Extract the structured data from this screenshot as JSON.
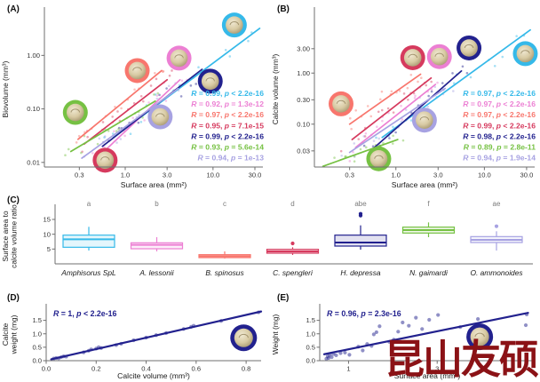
{
  "watermark": {
    "text": "昆山友硕",
    "color": "#8b1216"
  },
  "palette": {
    "cyan": "#35b9e9",
    "pink": "#ec7fd3",
    "salmon": "#f8766d",
    "red": "#d63a5e",
    "navy": "#22218e",
    "green": "#76c143",
    "lavender": "#a7a2e2",
    "letter_gray": "#7b7b7b",
    "axis_gray": "#6f6f6f",
    "tick_text": "#333333"
  },
  "chart_data": [
    {
      "id": "A",
      "type": "scatter",
      "panel_label": "(A)",
      "xlabel": "Surface area (mm²)",
      "ylabel": [
        "Biovolume (mm³)"
      ],
      "xscale": "log",
      "yscale": "log",
      "xlim": [
        0.12,
        37
      ],
      "ylim": [
        0.0082,
        6.6
      ],
      "xticks": {
        "values": [
          0.3,
          1,
          3,
          10,
          30
        ],
        "labels": [
          "0.3",
          "1.0",
          "3.0",
          "10.0",
          "30.0"
        ]
      },
      "yticks": {
        "values": [
          0.01,
          0.1,
          1
        ],
        "labels": [
          "0.01",
          "0.10",
          "1.00"
        ]
      },
      "legend_position": "right-bottom-inside",
      "series": [
        {
          "species": "Amphisorus SpL",
          "color": "cyan",
          "line": [
            0.73,
            0.029,
            34,
            3.2
          ],
          "icon": [
            17.5,
            3.7
          ],
          "r_label": "R = 0.99, p < 2.2e-16"
        },
        {
          "species": "A. lessonii",
          "color": "pink",
          "line": [
            0.5,
            0.013,
            4.2,
            0.35
          ],
          "icon": [
            4.1,
            0.89
          ],
          "r_label": "R = 0.92, p = 1.3e-12"
        },
        {
          "species": "B. spinosus",
          "color": "salmon",
          "line": [
            0.29,
            0.027,
            2.6,
            0.52
          ],
          "icon": [
            1.37,
            0.52
          ],
          "r_label": "R = 0.97, p < 2.2e-16"
        },
        {
          "species": "C. spengleri",
          "color": "red",
          "line": [
            0.34,
            0.022,
            3.0,
            0.35
          ],
          "icon": [
            0.59,
            0.011
          ],
          "r_label": "R = 0.95, p = 7.1e-15"
        },
        {
          "species": "H. depressa",
          "color": "navy",
          "line": [
            0.55,
            0.02,
            7.5,
            0.55
          ],
          "icon": [
            9.3,
            0.33
          ],
          "r_label": "R = 0.99, p < 2.2e-16"
        },
        {
          "species": "N. gaimardi",
          "color": "green",
          "line": [
            0.24,
            0.016,
            2.2,
            0.14
          ],
          "icon": [
            0.27,
            0.086
          ],
          "r_label": "R = 0.93, p = 5.6e-14"
        },
        {
          "species": "O. ammonoides",
          "color": "lavender",
          "line": [
            0.32,
            0.012,
            4.0,
            0.24
          ],
          "icon": [
            2.5,
            0.071
          ],
          "r_label": "R = 0.94, p = 1e-13"
        }
      ]
    },
    {
      "id": "B",
      "type": "scatter",
      "panel_label": "(B)",
      "xlabel": "Surface area (mm²)",
      "ylabel": [
        "Calcite volume (mm³)"
      ],
      "xscale": "log",
      "yscale": "log",
      "xlim": [
        0.12,
        37
      ],
      "ylim": [
        0.0145,
        16
      ],
      "xticks": {
        "values": [
          0.3,
          1,
          3,
          10,
          30
        ],
        "labels": [
          "0.3",
          "1.0",
          "3.0",
          "10.0",
          "30.0"
        ]
      },
      "yticks": {
        "values": [
          0.03,
          0.1,
          0.3,
          1,
          3
        ],
        "labels": [
          "0.03",
          "0.10",
          "0.30",
          "1.00",
          "3.00"
        ]
      },
      "legend_position": "right-bottom-inside",
      "series": [
        {
          "species": "Amphisorus SpL",
          "color": "cyan",
          "line": [
            0.7,
            0.055,
            33,
            7
          ],
          "icon": [
            29,
            2.4
          ],
          "r_label": "R = 0.97, p < 2.2e-16"
        },
        {
          "species": "A. lessonii",
          "color": "pink",
          "line": [
            0.35,
            0.035,
            2.8,
            0.6
          ],
          "icon": [
            3.1,
            2.1
          ],
          "r_label": "R = 0.97, p < 2.2e-16"
        },
        {
          "species": "B. spinosus",
          "color": "salmon",
          "line": [
            0.3,
            0.1,
            1.9,
            0.95
          ],
          "icon": [
            0.24,
            0.25
          ],
          "r_label": "R = 0.97, p < 2.2e-16"
        },
        {
          "species": "C. spengleri",
          "color": "red",
          "line": [
            0.32,
            0.05,
            2.5,
            0.8
          ],
          "icon": [
            1.55,
            2.0
          ],
          "r_label": "R = 0.99, p < 2.2e-16"
        },
        {
          "species": "H. depressa",
          "color": "navy",
          "line": [
            0.55,
            0.033,
            5.5,
            1.1
          ],
          "icon": [
            6.7,
            3.1
          ],
          "r_label": "R = 0.98, p < 2.2e-16"
        },
        {
          "species": "N. gaimardi",
          "color": "green",
          "line": [
            0.15,
            0.015,
            1.05,
            0.05
          ],
          "icon": [
            0.64,
            0.021
          ],
          "r_label": "R = 0.89, p = 2.8e-11"
        },
        {
          "species": "O. ammonoides",
          "color": "lavender",
          "line": [
            0.3,
            0.028,
            3.6,
            0.5
          ],
          "icon": [
            2.1,
            0.12
          ],
          "r_label": "R = 0.94, p = 1.9e-14"
        }
      ]
    },
    {
      "id": "C",
      "type": "box",
      "panel_label": "(C)",
      "ylabel": [
        "Surface area to",
        "calcite volume ratio"
      ],
      "ylim": [
        0,
        18.6
      ],
      "yticks": {
        "values": [
          5,
          10,
          15
        ],
        "labels": [
          "5",
          "10",
          "15"
        ]
      },
      "categories": [
        "Amphisorus SpL",
        "A. lessonii",
        "B. spinosus",
        "C. spengleri",
        "H. depressa",
        "N. gaimardi",
        "O. ammonoides"
      ],
      "letters": [
        "a",
        "b",
        "c",
        "d",
        "abe",
        "f",
        "ae"
      ],
      "colors": [
        "cyan",
        "pink",
        "salmon",
        "red",
        "navy",
        "green",
        "lavender"
      ],
      "boxes": [
        {
          "low": 4.5,
          "q1": 5.6,
          "median": 8.3,
          "q3": 9.7,
          "high": 12.5,
          "outliers": []
        },
        {
          "low": 4.2,
          "q1": 5.1,
          "median": 6.4,
          "q3": 7.1,
          "high": 9.0,
          "outliers": []
        },
        {
          "low": 1.8,
          "q1": 2.1,
          "median": 2.6,
          "q3": 3.1,
          "high": 4.2,
          "outliers": []
        },
        {
          "low": 3.0,
          "q1": 3.6,
          "median": 4.2,
          "q3": 4.9,
          "high": 5.6,
          "outliers": [
            6.9
          ]
        },
        {
          "low": 4.8,
          "q1": 6.0,
          "median": 7.2,
          "q3": 9.7,
          "high": 13.0,
          "outliers": [
            16.3,
            16.9
          ]
        },
        {
          "low": 9.0,
          "q1": 10.4,
          "median": 11.4,
          "q3": 12.4,
          "high": 14.0,
          "outliers": []
        },
        {
          "low": 4.5,
          "q1": 7.2,
          "median": 8.1,
          "q3": 9.2,
          "high": 11.0,
          "outliers": [
            12.7
          ]
        }
      ]
    },
    {
      "id": "D",
      "type": "scatter",
      "panel_label": "(D)",
      "xlabel": "Calcite volume (mm³)",
      "ylabel": [
        "Calcite",
        "weight (mg)"
      ],
      "xscale": "linear",
      "yscale": "linear",
      "xlim": [
        0,
        0.86
      ],
      "ylim": [
        0,
        1.95
      ],
      "xticks": {
        "values": [
          0,
          0.2,
          0.4,
          0.6,
          0.8
        ],
        "labels": [
          "0.0",
          "0.2",
          "0.4",
          "0.6",
          "0.8"
        ]
      },
      "yticks": {
        "values": [
          0,
          0.5,
          1,
          1.5
        ],
        "labels": [
          "0.0",
          "0.5",
          "1.0",
          "1.5"
        ]
      },
      "annotation": "R = 1, p < 2.2e-16",
      "line": [
        0.02,
        0.05,
        0.86,
        1.83
      ],
      "line_color": "navy",
      "point_color": "navy",
      "icon": {
        "pos": [
          0.79,
          0.85
        ],
        "color": "navy",
        "r": 15
      },
      "points": [
        [
          0.03,
          0.08
        ],
        [
          0.04,
          0.1
        ],
        [
          0.05,
          0.09
        ],
        [
          0.06,
          0.13
        ],
        [
          0.07,
          0.16
        ],
        [
          0.08,
          0.15
        ],
        [
          0.15,
          0.31
        ],
        [
          0.17,
          0.37
        ],
        [
          0.18,
          0.42
        ],
        [
          0.2,
          0.45
        ],
        [
          0.21,
          0.5
        ],
        [
          0.22,
          0.47
        ],
        [
          0.28,
          0.58
        ],
        [
          0.3,
          0.63
        ],
        [
          0.35,
          0.76
        ],
        [
          0.4,
          0.86
        ],
        [
          0.44,
          0.95
        ],
        [
          0.48,
          1.03
        ],
        [
          0.55,
          1.18
        ],
        [
          0.58,
          1.26
        ],
        [
          0.59,
          1.3
        ],
        [
          0.7,
          1.48
        ],
        [
          0.85,
          1.8
        ]
      ]
    },
    {
      "id": "E",
      "type": "scatter",
      "panel_label": "(E)",
      "xlabel": "Surface area (mm²)",
      "ylabel": [
        "Weight (mg)"
      ],
      "xscale": "linear",
      "yscale": "linear",
      "xlim": [
        0.35,
        5.2
      ],
      "ylim": [
        0,
        1.95
      ],
      "xticks": {
        "values": [
          1,
          2,
          3
        ],
        "labels": [
          "1",
          "2",
          "3"
        ]
      },
      "yticks": {
        "values": [
          0,
          0.5,
          1,
          1.5
        ],
        "labels": [
          "0.0",
          "0.5",
          "1.0",
          "1.5"
        ]
      },
      "annotation": "R = 0.96, p = 2.3e-16",
      "line": [
        0.45,
        0.24,
        5.05,
        1.78
      ],
      "line_color": "navy",
      "point_color": "navy",
      "icon": {
        "pos": [
          3.96,
          0.89
        ],
        "color": "navy",
        "r": 15
      },
      "points": [
        [
          0.5,
          0.07
        ],
        [
          0.53,
          0.16
        ],
        [
          0.55,
          0.1
        ],
        [
          0.58,
          0.22
        ],
        [
          0.62,
          0.13
        ],
        [
          0.66,
          0.25
        ],
        [
          0.72,
          0.2
        ],
        [
          0.82,
          0.28
        ],
        [
          0.92,
          0.3
        ],
        [
          1.02,
          0.22
        ],
        [
          1.22,
          0.52
        ],
        [
          1.32,
          0.38
        ],
        [
          1.42,
          0.62
        ],
        [
          1.52,
          0.55
        ],
        [
          1.57,
          0.98
        ],
        [
          1.63,
          1.06
        ],
        [
          1.7,
          1.28
        ],
        [
          1.92,
          0.7
        ],
        [
          2.02,
          0.78
        ],
        [
          2.12,
          1.08
        ],
        [
          2.22,
          1.42
        ],
        [
          2.36,
          1.3
        ],
        [
          2.52,
          1.6
        ],
        [
          2.66,
          1.18
        ],
        [
          2.82,
          1.52
        ],
        [
          3.02,
          1.7
        ],
        [
          3.52,
          1.25
        ],
        [
          3.92,
          1.55
        ],
        [
          5.0,
          1.32
        ],
        [
          5.02,
          1.72
        ]
      ]
    }
  ]
}
